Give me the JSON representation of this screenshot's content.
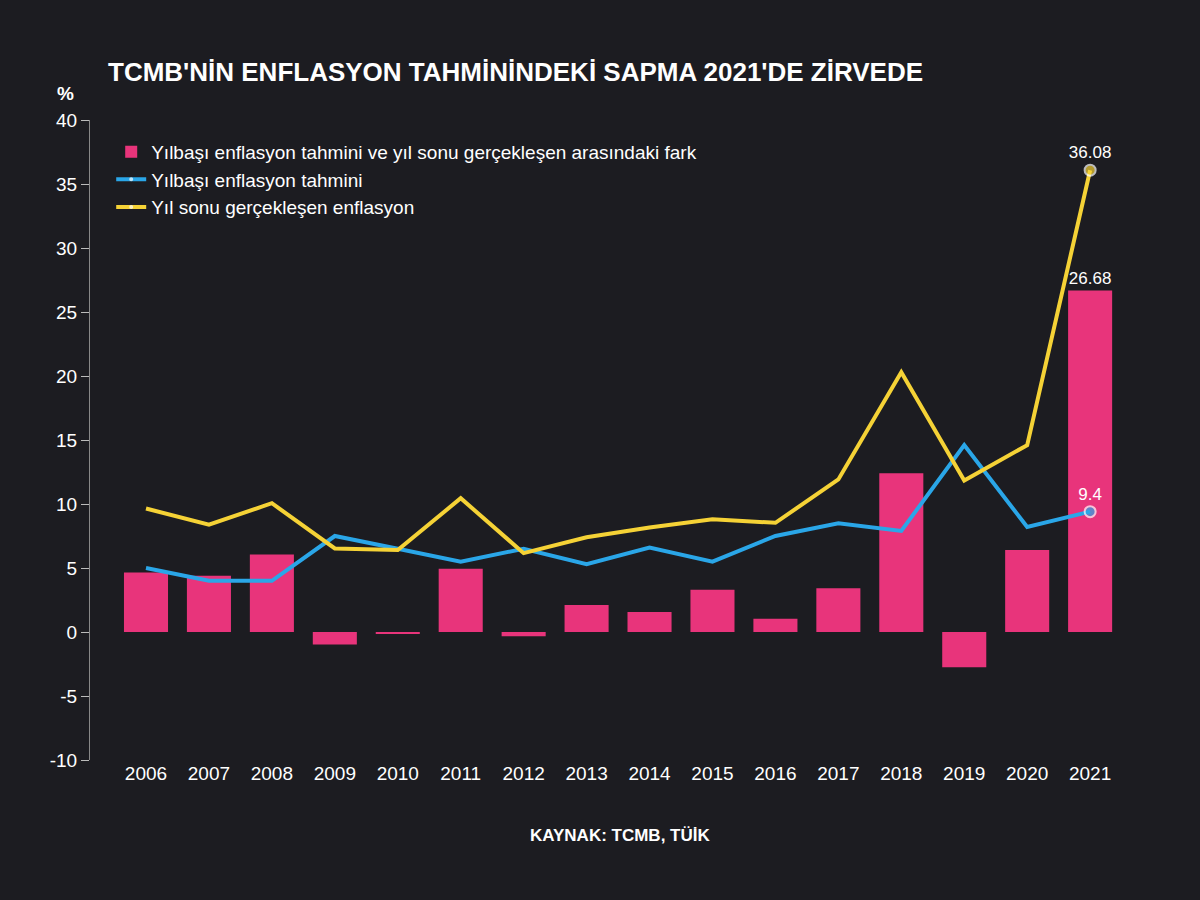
{
  "chart_data": {
    "type": "bar",
    "title": "TCMB'NİN ENFLASYON TAHMİNİNDEKİ SAPMA 2021'DE ZİRVEDE",
    "y_label": "%",
    "source": "KAYNAK: TCMB, TÜİK",
    "categories": [
      "2006",
      "2007",
      "2008",
      "2009",
      "2010",
      "2011",
      "2012",
      "2013",
      "2014",
      "2015",
      "2016",
      "2017",
      "2018",
      "2019",
      "2020",
      "2021"
    ],
    "series": [
      {
        "name": "Yılbaşı enflasyon tahmini ve yıl sonu gerçekleşen arasındaki fark",
        "type": "bar",
        "color": "#e8347b",
        "values": [
          4.65,
          4.39,
          6.06,
          -0.97,
          -0.1,
          4.95,
          -0.34,
          2.1,
          1.57,
          3.31,
          1.03,
          3.42,
          12.4,
          -2.76,
          6.4,
          26.68
        ],
        "value_labels": [
          null,
          null,
          null,
          null,
          null,
          null,
          null,
          null,
          null,
          null,
          null,
          null,
          null,
          null,
          null,
          "26.68"
        ]
      },
      {
        "name": "Yılbaşı enflasyon tahmini",
        "type": "line",
        "color": "#2aa6e8",
        "marker": "circle",
        "values": [
          5,
          4,
          4,
          7.5,
          6.5,
          5.5,
          6.5,
          5.3,
          6.6,
          5.5,
          7.5,
          8.5,
          7.9,
          14.6,
          8.2,
          9.4
        ],
        "value_labels": [
          null,
          null,
          null,
          null,
          null,
          null,
          null,
          null,
          null,
          null,
          null,
          null,
          null,
          null,
          null,
          "9.4"
        ]
      },
      {
        "name": "Yıl sonu gerçekleşen enflasyon",
        "type": "line",
        "color": "#f5d236",
        "marker": "circle",
        "values": [
          9.65,
          8.39,
          10.06,
          6.53,
          6.4,
          10.45,
          6.16,
          7.4,
          8.17,
          8.81,
          8.53,
          11.92,
          20.3,
          11.84,
          14.6,
          36.08
        ],
        "value_labels": [
          null,
          null,
          null,
          null,
          null,
          null,
          null,
          null,
          null,
          null,
          null,
          null,
          null,
          null,
          null,
          "36.08"
        ]
      }
    ],
    "ylim": [
      -10,
      40
    ],
    "yticks": [
      -10,
      -5,
      0,
      5,
      10,
      15,
      20,
      25,
      30,
      35,
      40
    ],
    "grid": false,
    "legend": "upper left"
  }
}
